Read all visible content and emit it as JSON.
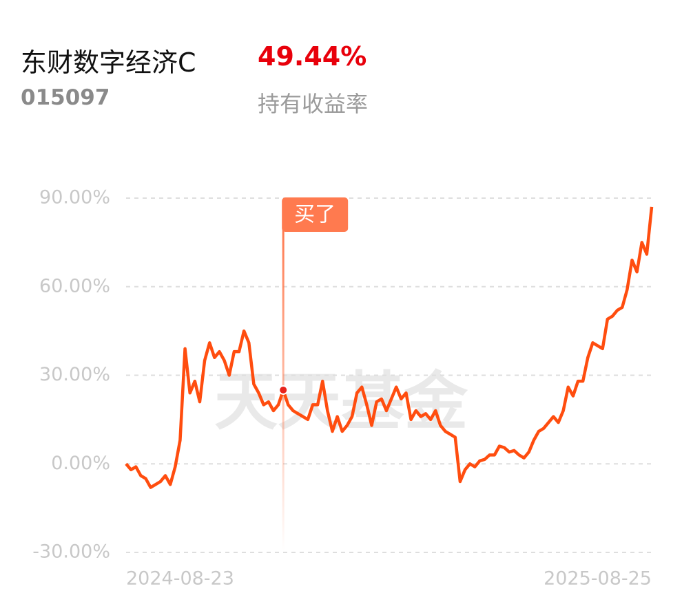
{
  "header": {
    "title": "东财数字经济C",
    "return": "49.44%",
    "code": "015097",
    "return_label": "持有收益率"
  },
  "chart_data": {
    "type": "line",
    "watermark": "天天基金",
    "categories": [
      "2024-08-23",
      null,
      null,
      null,
      null,
      null,
      null,
      null,
      null,
      null,
      null,
      null,
      null,
      null,
      null,
      null,
      null,
      null,
      null,
      null,
      null,
      null,
      null,
      null,
      null,
      null,
      null,
      null,
      null,
      null,
      null,
      null,
      null,
      null,
      null,
      null,
      null,
      null,
      null,
      null,
      null,
      null,
      null,
      null,
      null,
      null,
      null,
      null,
      null,
      null,
      null,
      null,
      null,
      null,
      null,
      null,
      null,
      null,
      null,
      null,
      null,
      null,
      null,
      null,
      null,
      null,
      null,
      null,
      null,
      null,
      null,
      null,
      null,
      null,
      null,
      null,
      null,
      null,
      null,
      null,
      null,
      null,
      null,
      null,
      null,
      null,
      null,
      null,
      null,
      null,
      null,
      null,
      null,
      null,
      null,
      null,
      null,
      null,
      null,
      null,
      null,
      null,
      null,
      null,
      null,
      null,
      null,
      "2025-08-25"
    ],
    "series": [
      {
        "color": "#ff4d0f",
        "values": [
          0,
          -2,
          -1,
          -4,
          -5,
          -8,
          -7,
          -6,
          -4,
          -7,
          -1,
          8,
          39,
          24,
          28,
          21,
          35,
          41,
          36,
          38,
          35,
          30,
          38,
          38,
          45,
          41,
          27,
          24,
          20,
          21,
          18,
          20,
          25,
          20,
          18,
          17,
          16,
          15,
          20,
          20,
          28,
          18,
          11,
          16,
          11,
          13,
          16,
          24,
          26,
          20,
          13,
          21,
          22,
          18,
          22,
          26,
          22,
          24,
          15,
          18,
          16,
          17,
          15,
          18,
          13,
          11,
          10,
          9,
          -6,
          -2,
          0,
          -1,
          1,
          1.5,
          3,
          3,
          6,
          5.5,
          4,
          4.5,
          3,
          2,
          4,
          8,
          11,
          12,
          14,
          16,
          14,
          18,
          26,
          23,
          28,
          28,
          36,
          41,
          40,
          39,
          49,
          50,
          52,
          53,
          59,
          69,
          65,
          75,
          71,
          87
        ]
      }
    ],
    "marker": {
      "label": "买了",
      "value": 25,
      "color": "#ff7a4f"
    },
    "ylim": [
      -30,
      90
    ],
    "yticks": [
      {
        "value": -30,
        "label": "-30.00%"
      },
      {
        "value": 0,
        "label": "0.00%"
      },
      {
        "value": 30,
        "label": "30.00%"
      },
      {
        "value": 60,
        "label": "60.00%"
      },
      {
        "value": 90,
        "label": "90.00%"
      }
    ],
    "grid": true
  }
}
